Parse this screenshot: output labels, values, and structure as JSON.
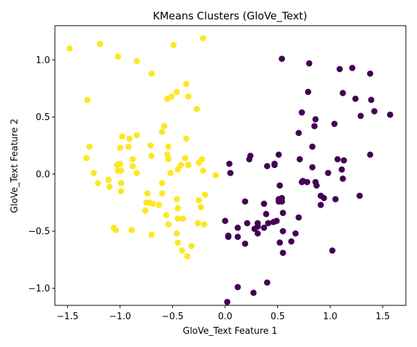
{
  "chart_data": {
    "type": "scatter",
    "title": "KMeans Clusters (GloVe_Text)",
    "xlabel": "GloVe_Text Feature 1",
    "ylabel": "GloVe_Text Feature 2",
    "xlim": [
      -1.62,
      1.72
    ],
    "ylim": [
      -1.15,
      1.3
    ],
    "xticks": [
      -1.5,
      -1.0,
      -0.5,
      0.0,
      0.5,
      1.0,
      1.5
    ],
    "yticks": [
      -1.0,
      -0.5,
      0.0,
      0.5,
      1.0
    ],
    "xtick_labels": [
      "−1.5",
      "−1.0",
      "−0.5",
      "0.0",
      "0.5",
      "1.0",
      "1.5"
    ],
    "ytick_labels": [
      "−1.0",
      "−0.5",
      "0.0",
      "0.5",
      "1.0"
    ],
    "grid": false,
    "legend": "none",
    "series": [
      {
        "color": "#fde725",
        "points": [
          [
            -1.48,
            1.1
          ],
          [
            -1.19,
            1.14
          ],
          [
            -1.02,
            1.03
          ],
          [
            -0.84,
            0.99
          ],
          [
            -0.49,
            1.13
          ],
          [
            -0.21,
            1.19
          ],
          [
            -0.7,
            0.88
          ],
          [
            -0.37,
            0.79
          ],
          [
            -0.46,
            0.72
          ],
          [
            -0.51,
            0.68
          ],
          [
            -0.55,
            0.66
          ],
          [
            -0.35,
            0.68
          ],
          [
            -1.31,
            0.65
          ],
          [
            -0.27,
            0.57
          ],
          [
            -0.58,
            0.42
          ],
          [
            -0.6,
            0.37
          ],
          [
            -0.84,
            0.34
          ],
          [
            -0.98,
            0.33
          ],
          [
            -0.91,
            0.31
          ],
          [
            -0.37,
            0.31
          ],
          [
            -1.29,
            0.24
          ],
          [
            -1.0,
            0.23
          ],
          [
            -0.92,
            0.24
          ],
          [
            -0.71,
            0.25
          ],
          [
            -0.54,
            0.24
          ],
          [
            -0.55,
            0.17
          ],
          [
            -0.7,
            0.16
          ],
          [
            -1.32,
            0.14
          ],
          [
            -0.38,
            0.14
          ],
          [
            -0.88,
            0.13
          ],
          [
            -0.54,
            0.13
          ],
          [
            -0.22,
            0.13
          ],
          [
            -1.03,
            0.08
          ],
          [
            -1.0,
            0.09
          ],
          [
            -0.88,
            0.07
          ],
          [
            -0.35,
            0.08
          ],
          [
            -0.42,
            0.08
          ],
          [
            -0.25,
            0.1
          ],
          [
            -1.02,
            0.03
          ],
          [
            -0.99,
            0.03
          ],
          [
            -0.84,
            0.01
          ],
          [
            -0.45,
            0.04
          ],
          [
            -0.52,
            0.01
          ],
          [
            -0.21,
            0.03
          ],
          [
            -0.09,
            -0.01
          ],
          [
            -1.25,
            0.01
          ],
          [
            -1.11,
            -0.05
          ],
          [
            -1.21,
            -0.08
          ],
          [
            -0.99,
            -0.08
          ],
          [
            -0.6,
            -0.08
          ],
          [
            -1.1,
            -0.11
          ],
          [
            -0.99,
            -0.15
          ],
          [
            -0.74,
            -0.17
          ],
          [
            -0.6,
            -0.17
          ],
          [
            -0.19,
            -0.18
          ],
          [
            -0.46,
            -0.22
          ],
          [
            -0.25,
            -0.23
          ],
          [
            -0.75,
            -0.25
          ],
          [
            -0.72,
            -0.25
          ],
          [
            -0.69,
            -0.26
          ],
          [
            -0.63,
            -0.27
          ],
          [
            -0.45,
            -0.3
          ],
          [
            -0.23,
            -0.29
          ],
          [
            -0.76,
            -0.32
          ],
          [
            -0.56,
            -0.36
          ],
          [
            -0.45,
            -0.39
          ],
          [
            -0.4,
            -0.39
          ],
          [
            -0.26,
            -0.43
          ],
          [
            -0.2,
            -0.44
          ],
          [
            -0.54,
            -0.44
          ],
          [
            -1.06,
            -0.47
          ],
          [
            -1.04,
            -0.49
          ],
          [
            -0.89,
            -0.49
          ],
          [
            -0.7,
            -0.53
          ],
          [
            -0.46,
            -0.52
          ],
          [
            -0.45,
            -0.6
          ],
          [
            -0.32,
            -0.63
          ],
          [
            -0.41,
            -0.67
          ],
          [
            -0.36,
            -0.72
          ]
        ]
      },
      {
        "color": "#440154",
        "points": [
          [
            0.54,
            1.01
          ],
          [
            0.8,
            0.97
          ],
          [
            1.09,
            0.92
          ],
          [
            1.21,
            0.93
          ],
          [
            1.38,
            0.88
          ],
          [
            0.79,
            0.72
          ],
          [
            1.12,
            0.71
          ],
          [
            1.24,
            0.66
          ],
          [
            1.39,
            0.65
          ],
          [
            1.29,
            0.51
          ],
          [
            1.42,
            0.55
          ],
          [
            1.57,
            0.52
          ],
          [
            0.73,
            0.54
          ],
          [
            0.86,
            0.48
          ],
          [
            0.85,
            0.42
          ],
          [
            1.04,
            0.44
          ],
          [
            0.7,
            0.36
          ],
          [
            0.83,
            0.24
          ],
          [
            1.38,
            0.17
          ],
          [
            0.23,
            0.13
          ],
          [
            0.24,
            0.16
          ],
          [
            0.51,
            0.17
          ],
          [
            0.71,
            0.13
          ],
          [
            1.07,
            0.13
          ],
          [
            1.13,
            0.12
          ],
          [
            0.04,
            0.09
          ],
          [
            0.4,
            0.07
          ],
          [
            0.47,
            0.09
          ],
          [
            0.47,
            0.08
          ],
          [
            0.83,
            0.06
          ],
          [
            0.05,
            0.01
          ],
          [
            0.98,
            0.01
          ],
          [
            1.11,
            0.04
          ],
          [
            1.12,
            -0.04
          ],
          [
            0.74,
            -0.06
          ],
          [
            0.78,
            -0.07
          ],
          [
            0.86,
            -0.07
          ],
          [
            0.87,
            -0.1
          ],
          [
            0.52,
            -0.1
          ],
          [
            0.73,
            -0.07
          ],
          [
            0.91,
            -0.19
          ],
          [
            0.94,
            -0.21
          ],
          [
            1.05,
            -0.22
          ],
          [
            1.28,
            -0.19
          ],
          [
            0.51,
            -0.22
          ],
          [
            0.54,
            -0.21
          ],
          [
            0.51,
            -0.24
          ],
          [
            0.54,
            -0.24
          ],
          [
            0.19,
            -0.24
          ],
          [
            0.37,
            -0.26
          ],
          [
            0.91,
            -0.27
          ],
          [
            0.39,
            -0.35
          ],
          [
            0.55,
            -0.34
          ],
          [
            0.0,
            -0.41
          ],
          [
            0.21,
            -0.43
          ],
          [
            0.31,
            -0.43
          ],
          [
            0.41,
            -0.43
          ],
          [
            0.46,
            -0.42
          ],
          [
            0.49,
            -0.41
          ],
          [
            0.7,
            -0.38
          ],
          [
            0.31,
            -0.46
          ],
          [
            0.28,
            -0.48
          ],
          [
            0.12,
            -0.47
          ],
          [
            0.37,
            -0.47
          ],
          [
            0.55,
            -0.5
          ],
          [
            0.31,
            -0.52
          ],
          [
            0.03,
            -0.54
          ],
          [
            0.03,
            -0.55
          ],
          [
            0.12,
            -0.55
          ],
          [
            0.67,
            -0.52
          ],
          [
            0.63,
            -0.59
          ],
          [
            0.19,
            -0.61
          ],
          [
            0.52,
            -0.6
          ],
          [
            1.02,
            -0.67
          ],
          [
            0.55,
            -0.69
          ],
          [
            0.4,
            -0.95
          ],
          [
            0.12,
            -0.99
          ],
          [
            0.27,
            -1.04
          ],
          [
            0.02,
            -1.12
          ]
        ]
      }
    ]
  }
}
